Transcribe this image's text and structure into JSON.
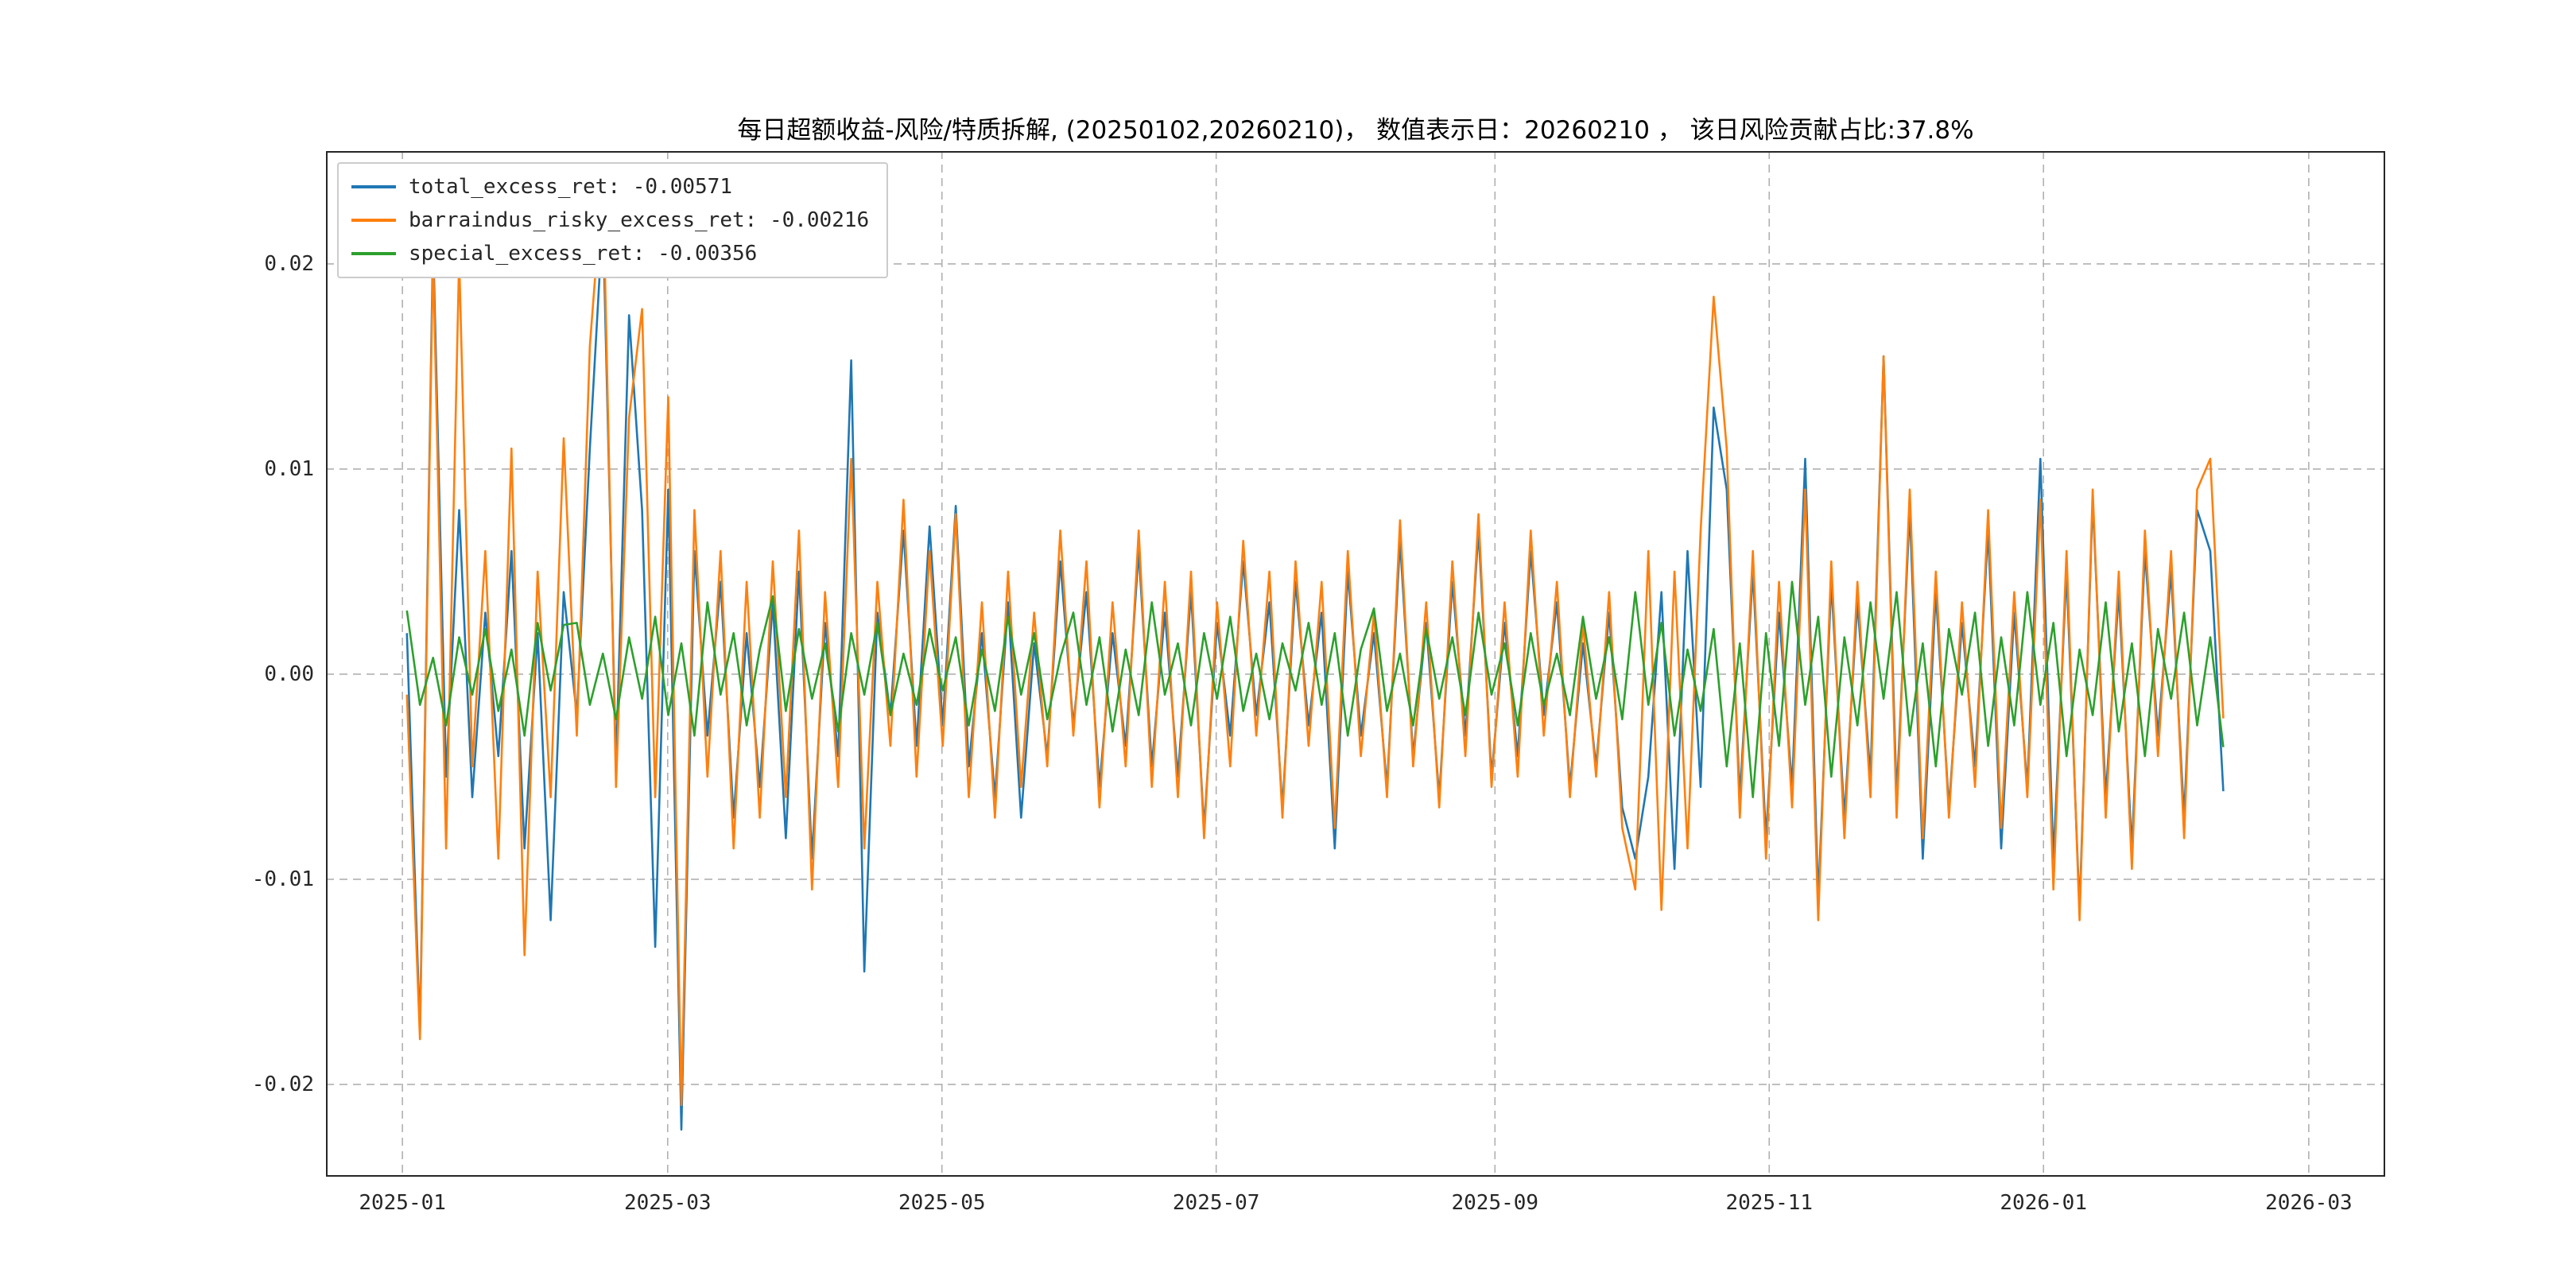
{
  "title": "每日超额收益-风险/特质拆解, (20250102,20260210)，  数值表示日：20260210 ， 该日风险贡献占比:37.8%",
  "colors": {
    "blue": "#1f77b4",
    "orange": "#ff7f0e",
    "green": "#2ca02c",
    "grid": "#b0b0b0",
    "spine": "#262626"
  },
  "chart_data": {
    "type": "line",
    "title": "每日超额收益-风险/特质拆解, (20250102,20260210)，  数值表示日：20260210 ， 该日风险贡献占比:37.8%",
    "grid": true,
    "legend_position": "upper left",
    "x_axis": {
      "tick_labels": [
        "2025-01",
        "2025-03",
        "2025-05",
        "2025-07",
        "2025-09",
        "2025-11",
        "2026-01",
        "2026-03"
      ],
      "tick_days": [
        0,
        59,
        120,
        181,
        243,
        304,
        365,
        424
      ],
      "xlim": [
        -17,
        441
      ]
    },
    "y_axis": {
      "tick_labels": [
        "0.02",
        "0.01",
        "0.00",
        "-0.01",
        "-0.02"
      ],
      "tick_values": [
        0.02,
        0.01,
        0.0,
        -0.01,
        -0.02
      ],
      "ylim": [
        -0.0245,
        0.0255
      ]
    },
    "x_start_day": 1,
    "x_end_day": 405,
    "series": [
      {
        "name": "total_excess_ret",
        "label": "total_excess_ret: -0.00571",
        "last_value": -0.00571,
        "color": "#1f77b4",
        "values": [
          0.002,
          -0.0175,
          0.0213,
          -0.005,
          0.008,
          -0.006,
          0.003,
          -0.004,
          0.006,
          -0.0085,
          0.002,
          -0.012,
          0.004,
          -0.002,
          0.011,
          0.0223,
          -0.0045,
          0.0175,
          0.008,
          -0.0133,
          0.009,
          -0.0222,
          0.006,
          -0.003,
          0.0045,
          -0.007,
          0.002,
          -0.0055,
          0.0035,
          -0.008,
          0.005,
          -0.009,
          0.0025,
          -0.004,
          0.0153,
          -0.0145,
          0.003,
          -0.002,
          0.007,
          -0.0035,
          0.0072,
          -0.0025,
          0.0082,
          -0.0045,
          0.002,
          -0.006,
          0.0035,
          -0.007,
          0.0015,
          -0.004,
          0.0055,
          -0.0025,
          0.004,
          -0.0055,
          0.002,
          -0.0035,
          0.006,
          -0.0045,
          0.003,
          -0.005,
          0.004,
          -0.0075,
          0.0025,
          -0.003,
          0.0055,
          -0.002,
          0.0035,
          -0.0065,
          0.0045,
          -0.0025,
          0.003,
          -0.0085,
          0.005,
          -0.003,
          0.002,
          -0.0055,
          0.0065,
          -0.004,
          0.0025,
          -0.006,
          0.0045,
          -0.003,
          0.007,
          -0.005,
          0.0025,
          -0.004,
          0.006,
          -0.002,
          0.0035,
          -0.0055,
          0.0015,
          -0.0045,
          0.003,
          -0.0065,
          -0.009,
          -0.005,
          0.004,
          -0.0095,
          0.006,
          -0.0055,
          0.013,
          0.009,
          -0.006,
          0.005,
          -0.008,
          0.003,
          -0.0055,
          0.0105,
          -0.011,
          0.0045,
          -0.007,
          0.0035,
          -0.005,
          0.0155,
          -0.006,
          0.008,
          -0.009,
          0.004,
          -0.0065,
          0.0025,
          -0.0045,
          0.007,
          -0.0085,
          0.003,
          -0.0055,
          0.0105,
          -0.009,
          0.005,
          -0.0115,
          0.0085,
          -0.006,
          0.004,
          -0.0085,
          0.006,
          -0.003,
          0.005,
          -0.007,
          0.008,
          0.006,
          -0.00571
        ]
      },
      {
        "name": "barraindus_risky_excess_ret",
        "label": "barraindus_risky_excess_ret: -0.00216",
        "last_value": -0.00216,
        "color": "#ff7f0e",
        "values": [
          -0.001,
          -0.0178,
          0.0205,
          -0.0085,
          0.0203,
          -0.0045,
          0.006,
          -0.009,
          0.011,
          -0.0137,
          0.005,
          -0.006,
          0.0115,
          -0.003,
          0.016,
          0.0243,
          -0.0055,
          0.0125,
          0.0178,
          -0.006,
          0.0135,
          -0.021,
          0.008,
          -0.005,
          0.006,
          -0.0085,
          0.0045,
          -0.007,
          0.0055,
          -0.006,
          0.007,
          -0.0105,
          0.004,
          -0.0055,
          0.0105,
          -0.0085,
          0.0045,
          -0.0035,
          0.0085,
          -0.005,
          0.006,
          -0.0035,
          0.0078,
          -0.006,
          0.0035,
          -0.007,
          0.005,
          -0.0055,
          0.003,
          -0.0045,
          0.007,
          -0.003,
          0.0055,
          -0.0065,
          0.0035,
          -0.0045,
          0.007,
          -0.0055,
          0.0045,
          -0.006,
          0.005,
          -0.008,
          0.0035,
          -0.0045,
          0.0065,
          -0.003,
          0.005,
          -0.007,
          0.0055,
          -0.0035,
          0.0045,
          -0.0075,
          0.006,
          -0.004,
          0.003,
          -0.006,
          0.0075,
          -0.0045,
          0.0035,
          -0.0065,
          0.0055,
          -0.004,
          0.0078,
          -0.0055,
          0.0035,
          -0.005,
          0.007,
          -0.003,
          0.0045,
          -0.006,
          0.0025,
          -0.005,
          0.004,
          -0.0075,
          -0.0105,
          0.006,
          -0.0115,
          0.005,
          -0.0085,
          0.007,
          0.0184,
          0.011,
          -0.007,
          0.006,
          -0.009,
          0.0045,
          -0.0065,
          0.009,
          -0.012,
          0.0055,
          -0.008,
          0.0045,
          -0.006,
          0.0155,
          -0.007,
          0.009,
          -0.008,
          0.005,
          -0.007,
          0.0035,
          -0.0055,
          0.008,
          -0.0075,
          0.004,
          -0.006,
          0.0085,
          -0.0105,
          0.006,
          -0.012,
          0.009,
          -0.007,
          0.005,
          -0.0095,
          0.007,
          -0.004,
          0.006,
          -0.008,
          0.009,
          0.0105,
          -0.00216
        ]
      },
      {
        "name": "special_excess_ret",
        "label": "special_excess_ret: -0.00356",
        "last_value": -0.00356,
        "color": "#2ca02c",
        "values": [
          0.0031,
          -0.0015,
          0.0008,
          -0.0025,
          0.0018,
          -0.001,
          0.0022,
          -0.0018,
          0.0012,
          -0.003,
          0.0025,
          -0.0008,
          0.0024,
          0.0025,
          -0.0015,
          0.001,
          -0.0022,
          0.0018,
          -0.0012,
          0.0028,
          -0.002,
          0.0015,
          -0.003,
          0.0035,
          -0.001,
          0.002,
          -0.0025,
          0.0012,
          0.0038,
          -0.0018,
          0.0022,
          -0.0012,
          0.0015,
          -0.0028,
          0.002,
          -0.001,
          0.0025,
          -0.002,
          0.001,
          -0.0015,
          0.0022,
          -0.0008,
          0.0018,
          -0.0025,
          0.0012,
          -0.0018,
          0.0028,
          -0.001,
          0.002,
          -0.0022,
          0.0008,
          0.003,
          -0.0015,
          0.0018,
          -0.0028,
          0.0012,
          -0.002,
          0.0035,
          -0.001,
          0.0015,
          -0.0025,
          0.002,
          -0.0012,
          0.0028,
          -0.0018,
          0.001,
          -0.0022,
          0.0015,
          -0.0008,
          0.0025,
          -0.0015,
          0.002,
          -0.003,
          0.0012,
          0.0032,
          -0.0018,
          0.001,
          -0.0025,
          0.0022,
          -0.0012,
          0.0018,
          -0.002,
          0.003,
          -0.001,
          0.0015,
          -0.0025,
          0.002,
          -0.0015,
          0.001,
          -0.002,
          0.0028,
          -0.0012,
          0.0018,
          -0.0022,
          0.004,
          -0.0015,
          0.0025,
          -0.003,
          0.0012,
          -0.0018,
          0.0022,
          -0.0045,
          0.0015,
          -0.006,
          0.002,
          -0.0035,
          0.0045,
          -0.0015,
          0.0028,
          -0.005,
          0.0018,
          -0.0025,
          0.0035,
          -0.0012,
          0.004,
          -0.003,
          0.0015,
          -0.0045,
          0.0022,
          -0.001,
          0.003,
          -0.0035,
          0.0018,
          -0.0025,
          0.004,
          -0.0015,
          0.0025,
          -0.004,
          0.0012,
          -0.002,
          0.0035,
          -0.0028,
          0.0015,
          -0.004,
          0.0022,
          -0.0012,
          0.003,
          -0.0025,
          0.0018,
          -0.00356
        ]
      }
    ]
  }
}
